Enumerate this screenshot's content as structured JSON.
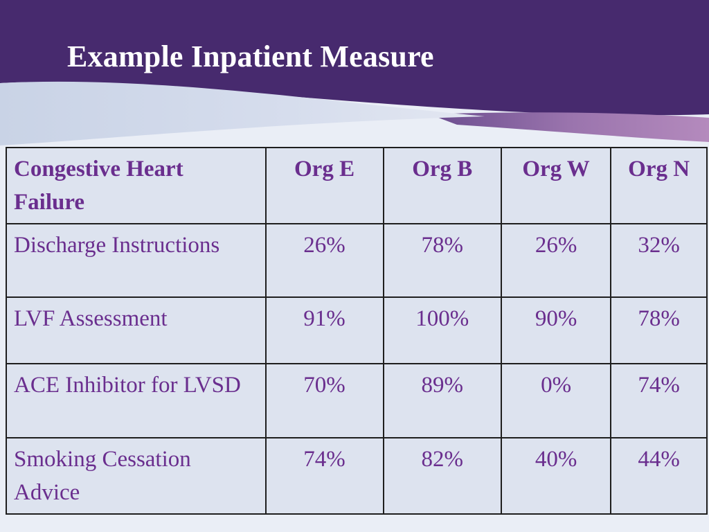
{
  "slide": {
    "title": "Example Inpatient Measure"
  },
  "colors": {
    "banner": "#472a6e",
    "text": "#6a2e8e",
    "table_bg": "#dde3ef",
    "border": "#1e1e1e"
  },
  "table": {
    "columns": [
      "Congestive Heart Failure",
      "Org E",
      "Org B",
      "Org W",
      "Org N"
    ],
    "rows": [
      {
        "measure": "Discharge Instructions",
        "values": [
          "26%",
          "78%",
          "26%",
          "32%"
        ]
      },
      {
        "measure": "LVF Assessment",
        "values": [
          "91%",
          "100%",
          "90%",
          "78%"
        ]
      },
      {
        "measure": "ACE Inhibitor for LVSD",
        "values": [
          "70%",
          "89%",
          "0%",
          "74%"
        ]
      },
      {
        "measure": "Smoking Cessation Advice",
        "values": [
          "74%",
          "82%",
          "40%",
          "44%"
        ]
      }
    ]
  }
}
